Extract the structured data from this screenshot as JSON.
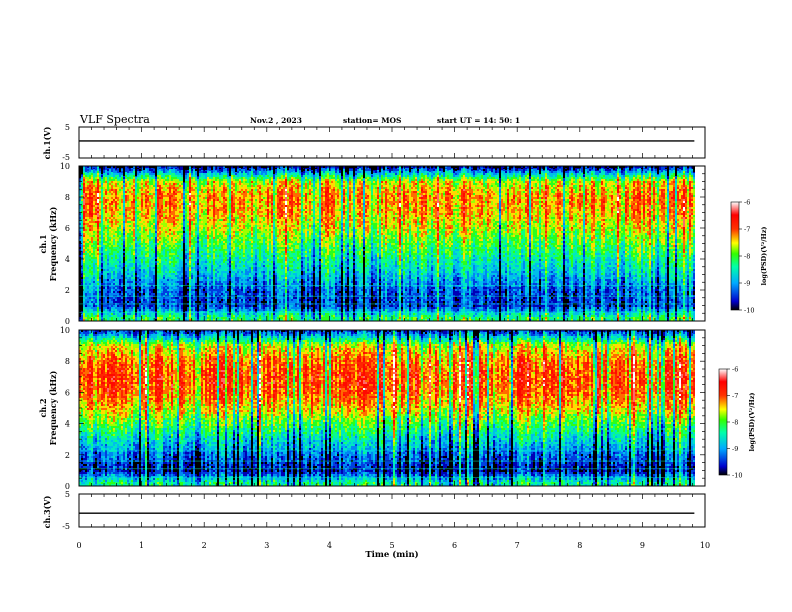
{
  "chart_data": {
    "type": "heatmap",
    "header": {
      "title": "VLF Spectra",
      "date": "Nov.2  , 2023",
      "station": "station= MOS",
      "start": "start  UT =   14: 50: 1"
    },
    "xlabel": "Time  (min)",
    "xlim": [
      0,
      10
    ],
    "x_ticks": [
      "0",
      "1",
      "2",
      "3",
      "4",
      "5",
      "6",
      "7",
      "8",
      "9",
      "10"
    ],
    "data_end_min": 9.83,
    "panels": [
      {
        "id": "ch1_voltage",
        "type": "line",
        "ylabel": "ch.1(V)",
        "ylim": [
          -5,
          5
        ],
        "y_ticks": [
          "5",
          "-5"
        ],
        "trace_level_v": 0.5
      },
      {
        "id": "ch1_spectrogram",
        "type": "heatmap",
        "ylabel_line1": "ch.1",
        "ylabel_line2": "Frequency  (kHz)",
        "ylim": [
          0,
          10
        ],
        "y_ticks": [
          "0",
          "2",
          "4",
          "6",
          "8",
          "10"
        ],
        "typical_log_psd_profile": [
          {
            "f_khz": 0.2,
            "v": -8.2
          },
          {
            "f_khz": 1.0,
            "v": -9.5
          },
          {
            "f_khz": 2.0,
            "v": -9.3
          },
          {
            "f_khz": 3.0,
            "v": -8.8
          },
          {
            "f_khz": 4.0,
            "v": -8.4
          },
          {
            "f_khz": 5.0,
            "v": -8.0
          },
          {
            "f_khz": 6.0,
            "v": -7.6
          },
          {
            "f_khz": 7.0,
            "v": -7.3
          },
          {
            "f_khz": 8.0,
            "v": -7.2
          },
          {
            "f_khz": 9.0,
            "v": -7.6
          },
          {
            "f_khz": 9.6,
            "v": -9.0
          },
          {
            "f_khz": 10.0,
            "v": -9.8
          }
        ],
        "colorbar": {
          "label": "log(PSD)(V²/Hz)",
          "range": [
            -10,
            -6
          ],
          "ticks": [
            "-6",
            "-7",
            "-8",
            "-9",
            "-10"
          ]
        }
      },
      {
        "id": "ch2_spectrogram",
        "type": "heatmap",
        "ylabel_line1": "ch.2",
        "ylabel_line2": "Frequency  (kHz)",
        "ylim": [
          0,
          10
        ],
        "y_ticks": [
          "0",
          "2",
          "4",
          "6",
          "8",
          "10"
        ],
        "typical_log_psd_profile": [
          {
            "f_khz": 0.2,
            "v": -8.4
          },
          {
            "f_khz": 1.0,
            "v": -9.7
          },
          {
            "f_khz": 2.0,
            "v": -9.2
          },
          {
            "f_khz": 3.0,
            "v": -8.6
          },
          {
            "f_khz": 4.0,
            "v": -8.0
          },
          {
            "f_khz": 5.0,
            "v": -7.4
          },
          {
            "f_khz": 6.0,
            "v": -7.0
          },
          {
            "f_khz": 7.0,
            "v": -6.9
          },
          {
            "f_khz": 8.0,
            "v": -7.1
          },
          {
            "f_khz": 9.0,
            "v": -7.6
          },
          {
            "f_khz": 9.6,
            "v": -8.8
          },
          {
            "f_khz": 10.0,
            "v": -9.6
          }
        ],
        "colorbar": {
          "label": "log(PSD)(V²/Hz)",
          "range": [
            -10,
            -6
          ],
          "ticks": [
            "-6",
            "-7",
            "-8",
            "-9",
            "-10"
          ]
        }
      },
      {
        "id": "ch3_voltage",
        "type": "line",
        "ylabel": "ch.3(V)",
        "ylim": [
          -5,
          5
        ],
        "y_ticks": [
          "5",
          "-5"
        ],
        "trace_level_v": -0.8
      }
    ],
    "colormap": [
      "#000000",
      "#0000cc",
      "#00aaff",
      "#00ffaa",
      "#33ff00",
      "#ffff00",
      "#ff3300",
      "#ff0000",
      "#ffffff"
    ],
    "grid": false,
    "legend": "none"
  }
}
